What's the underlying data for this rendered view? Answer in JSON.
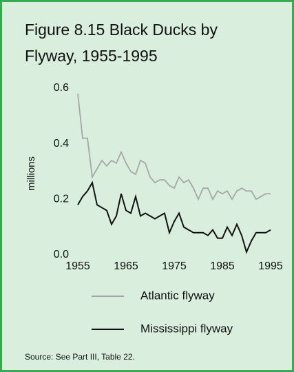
{
  "chart_data": {
    "type": "line",
    "title": [
      "Figure 8.15  Black Ducks by",
      "Flyway, 1955-1995"
    ],
    "y_label": "millions",
    "source": "Source: See Part III, Table 22.",
    "x": [
      1955,
      1956,
      1957,
      1958,
      1959,
      1960,
      1961,
      1962,
      1963,
      1964,
      1965,
      1966,
      1967,
      1968,
      1969,
      1970,
      1971,
      1972,
      1973,
      1974,
      1975,
      1976,
      1977,
      1978,
      1979,
      1980,
      1981,
      1982,
      1983,
      1984,
      1985,
      1986,
      1987,
      1988,
      1989,
      1990,
      1991,
      1992,
      1993,
      1994,
      1995
    ],
    "series": [
      {
        "name": "Atlantic flyway",
        "color": "#a6a6a6",
        "values": [
          0.58,
          0.42,
          0.42,
          0.28,
          0.31,
          0.34,
          0.32,
          0.34,
          0.33,
          0.37,
          0.33,
          0.3,
          0.29,
          0.34,
          0.33,
          0.28,
          0.26,
          0.27,
          0.27,
          0.25,
          0.24,
          0.28,
          0.26,
          0.27,
          0.24,
          0.2,
          0.24,
          0.24,
          0.2,
          0.23,
          0.22,
          0.23,
          0.2,
          0.23,
          0.24,
          0.23,
          0.23,
          0.2,
          0.21,
          0.22,
          0.22
        ]
      },
      {
        "name": "Mississippi flyway",
        "color": "#111111",
        "values": [
          0.18,
          0.21,
          0.23,
          0.26,
          0.18,
          0.17,
          0.16,
          0.11,
          0.14,
          0.22,
          0.16,
          0.15,
          0.21,
          0.14,
          0.15,
          0.14,
          0.13,
          0.14,
          0.15,
          0.08,
          0.12,
          0.15,
          0.1,
          0.09,
          0.08,
          0.08,
          0.08,
          0.07,
          0.09,
          0.06,
          0.06,
          0.1,
          0.07,
          0.11,
          0.07,
          0.01,
          0.05,
          0.08,
          0.08,
          0.08,
          0.09
        ]
      }
    ],
    "xlim": [
      1955,
      1995
    ],
    "xticks": [
      1955,
      1965,
      1975,
      1985,
      1995
    ],
    "ylim": [
      0,
      0.6
    ],
    "yticks": [
      {
        "value": 0,
        "label": "0.0"
      },
      0.2,
      0.4,
      0.6
    ]
  }
}
